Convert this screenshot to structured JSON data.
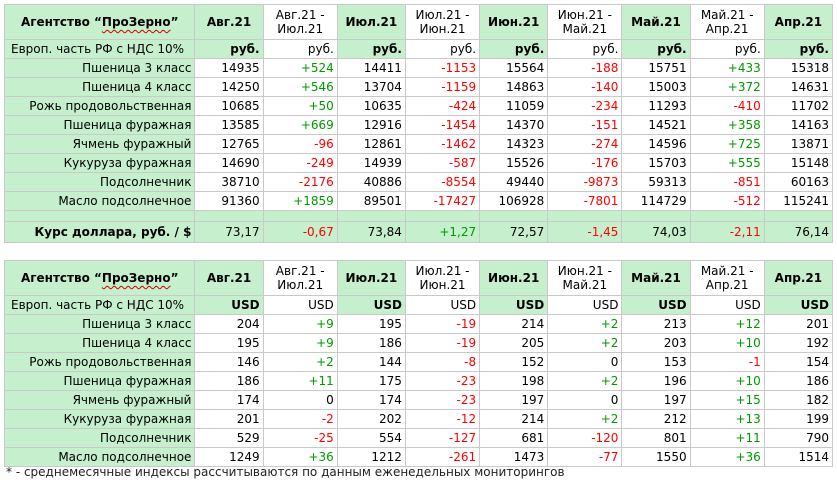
{
  "agency": {
    "prefix": "Агентство “",
    "name": "ПроЗерно",
    "suffix": "”"
  },
  "periods": [
    {
      "label": "Авг.21",
      "type": "p"
    },
    {
      "label": "Авг.21 -\nИюл.21",
      "type": "d"
    },
    {
      "label": "Июл.21",
      "type": "p"
    },
    {
      "label": "Июл.21 -\nИюн.21",
      "type": "d"
    },
    {
      "label": "Июн.21",
      "type": "p"
    },
    {
      "label": "Июн.21 -\nМай.21",
      "type": "d"
    },
    {
      "label": "Май.21",
      "type": "p"
    },
    {
      "label": "Май.21 -\nАпр.21",
      "type": "d"
    },
    {
      "label": "Апр.21",
      "type": "p"
    }
  ],
  "tables": [
    {
      "id": "rub",
      "units_label": "Европ. часть РФ с НДС 10%",
      "unit": "руб.",
      "rows": [
        {
          "label": "Пшеница 3 класс",
          "values": [
            "14935",
            "+524",
            "14411",
            "-1153",
            "15564",
            "-188",
            "15751",
            "+433",
            "15318"
          ]
        },
        {
          "label": "Пшеница 4 класс",
          "values": [
            "14250",
            "+546",
            "13704",
            "-1159",
            "14863",
            "-140",
            "15003",
            "+372",
            "14631"
          ]
        },
        {
          "label": "Рожь продовольственная",
          "values": [
            "10685",
            "+50",
            "10635",
            "-424",
            "11059",
            "-234",
            "11293",
            "-410",
            "11702"
          ]
        },
        {
          "label": "Пшеница фуражная",
          "values": [
            "13585",
            "+669",
            "12916",
            "-1454",
            "14370",
            "-151",
            "14521",
            "+358",
            "14163"
          ]
        },
        {
          "label": "Ячмень фуражный",
          "values": [
            "12765",
            "-96",
            "12861",
            "-1462",
            "14323",
            "-274",
            "14596",
            "+725",
            "13871"
          ]
        },
        {
          "label": "Кукуруза фуражная",
          "values": [
            "14690",
            "-249",
            "14939",
            "-587",
            "15526",
            "-176",
            "15703",
            "+555",
            "15148"
          ]
        },
        {
          "label": "Подсолнечник",
          "values": [
            "38710",
            "-2176",
            "40886",
            "-8554",
            "49440",
            "-9873",
            "59313",
            "-851",
            "60163"
          ]
        },
        {
          "label": "Масло подсолнечное",
          "values": [
            "91360",
            "+1859",
            "89501",
            "-17427",
            "106928",
            "-7801",
            "114729",
            "-512",
            "115241"
          ]
        }
      ],
      "rate": {
        "label": "Курс доллара, руб. / $",
        "values": [
          "73,17",
          "-0,67",
          "73,84",
          "+1,27",
          "72,57",
          "-1,45",
          "74,03",
          "-2,11",
          "76,14"
        ]
      }
    },
    {
      "id": "usd",
      "units_label": "Европ. часть РФ с НДС 10%",
      "unit": "USD",
      "rows": [
        {
          "label": "Пшеница 3 класс",
          "values": [
            "204",
            "+9",
            "195",
            "-19",
            "214",
            "+2",
            "213",
            "+12",
            "201"
          ]
        },
        {
          "label": "Пшеница 4 класс",
          "values": [
            "195",
            "+9",
            "186",
            "-19",
            "205",
            "+2",
            "203",
            "+10",
            "192"
          ]
        },
        {
          "label": "Рожь продовольственная",
          "values": [
            "146",
            "+2",
            "144",
            "-8",
            "152",
            "0",
            "153",
            "-1",
            "154"
          ]
        },
        {
          "label": "Пшеница фуражная",
          "values": [
            "186",
            "+11",
            "175",
            "-23",
            "198",
            "+2",
            "196",
            "+10",
            "186"
          ]
        },
        {
          "label": "Ячмень фуражный",
          "values": [
            "174",
            "0",
            "174",
            "-23",
            "197",
            "0",
            "197",
            "+15",
            "182"
          ]
        },
        {
          "label": "Кукуруза фуражная",
          "values": [
            "201",
            "-2",
            "202",
            "-12",
            "214",
            "+2",
            "212",
            "+13",
            "199"
          ]
        },
        {
          "label": "Подсолнечник",
          "values": [
            "529",
            "-25",
            "554",
            "-127",
            "681",
            "-120",
            "801",
            "+11",
            "790"
          ]
        },
        {
          "label": "Масло подсолнечное",
          "values": [
            "1249",
            "+36",
            "1212",
            "-261",
            "1473",
            "-77",
            "1550",
            "+36",
            "1514"
          ]
        }
      ]
    }
  ],
  "footnote": "* - среднемесячные индексы рассчитываются по данным еженедельных мониторингов",
  "colors": {
    "header_bg": "#c6efce",
    "positive": "#009900",
    "negative": "#ff0000",
    "border": "#c9c9c9"
  }
}
